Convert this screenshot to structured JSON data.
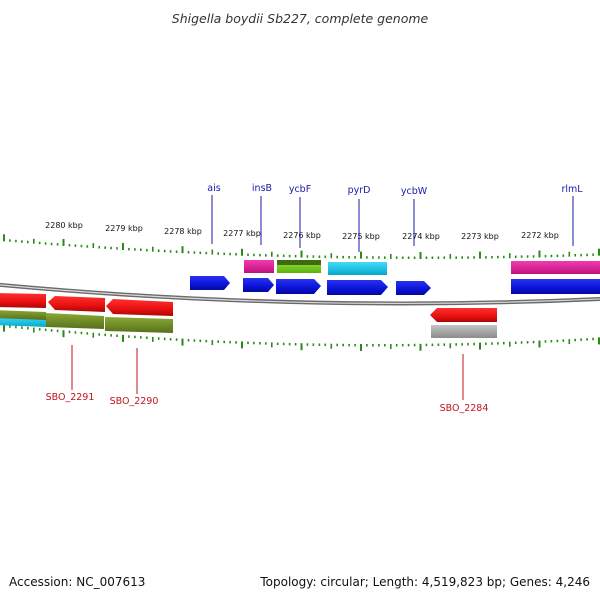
{
  "title": "Shigella boydii Sb227, complete genome",
  "footer": {
    "accession": "Accession: NC_007613",
    "summary": "Topology: circular; Length: 4,519,823 bp; Genes: 4,246"
  },
  "ruler": {
    "ticks": [
      {
        "label": "2280 kbp"
      },
      {
        "label": "2279 kbp"
      },
      {
        "label": "2278 kbp"
      },
      {
        "label": "2277 kbp"
      },
      {
        "label": "2276 kbp"
      },
      {
        "label": "2275 kbp"
      },
      {
        "label": "2274 kbp"
      },
      {
        "label": "2273 kbp"
      },
      {
        "label": "2272 kbp"
      }
    ]
  },
  "gene_labels_top": [
    {
      "label": "ais"
    },
    {
      "label": "insB"
    },
    {
      "label": "ycbF"
    },
    {
      "label": "pyrD"
    },
    {
      "label": "ycbW"
    },
    {
      "label": "rlmL"
    }
  ],
  "gene_labels_bottom": [
    {
      "label": "SBO_2291"
    },
    {
      "label": "SBO_2290"
    },
    {
      "label": "SBO_2284"
    }
  ],
  "colors": {
    "forward_cds": "#0a12d8",
    "reverse_cds": "#e80f0f",
    "pink": "#e8189a",
    "olive": "#6e8a22",
    "lime": "#7bd81e",
    "cyan": "#12c8ea",
    "gray": "#a8a8a8",
    "ticks": "#2a8a18",
    "backbone": "#8a8a8a"
  }
}
